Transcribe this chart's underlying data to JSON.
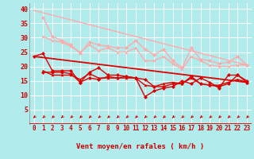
{
  "background_color": "#b2ebeb",
  "grid_color": "#ffffff",
  "xlabel": "Vent moyen/en rafales ( km/h )",
  "x_ticks": [
    0,
    1,
    2,
    3,
    4,
    5,
    6,
    7,
    8,
    9,
    10,
    11,
    12,
    13,
    14,
    15,
    16,
    17,
    18,
    19,
    20,
    21,
    22,
    23
  ],
  "ylim": [
    0,
    42
  ],
  "yticks": [
    5,
    10,
    15,
    20,
    25,
    30,
    35,
    40
  ],
  "lines": [
    {
      "color": "#ffaaaa",
      "linewidth": 1.0,
      "marker": null,
      "data_x": [
        0,
        23
      ],
      "data_y": [
        39.5,
        20.5
      ]
    },
    {
      "color": "#ffaaaa",
      "linewidth": 1.0,
      "marker": "D",
      "markersize": 2.5,
      "data_x": [
        1,
        2,
        3,
        4,
        5,
        6,
        7,
        8,
        9,
        10,
        11,
        12,
        13,
        14,
        15,
        16,
        17,
        18,
        19,
        20,
        21,
        22,
        23
      ],
      "data_y": [
        37.0,
        30.5,
        29.0,
        27.5,
        24.5,
        28.5,
        27.5,
        27.0,
        26.5,
        26.5,
        29.0,
        26.0,
        24.0,
        26.0,
        22.0,
        19.5,
        26.5,
        22.5,
        22.0,
        21.0,
        21.5,
        23.5,
        20.5
      ]
    },
    {
      "color": "#ffaaaa",
      "linewidth": 1.0,
      "marker": "^",
      "markersize": 2.5,
      "data_x": [
        1,
        2,
        3,
        4,
        5,
        6,
        7,
        8,
        9,
        10,
        11,
        12,
        13,
        14,
        15,
        16,
        17,
        18,
        19,
        20,
        21,
        22,
        23
      ],
      "data_y": [
        30.5,
        29.0,
        28.5,
        27.0,
        25.0,
        27.5,
        25.5,
        26.5,
        25.0,
        25.0,
        26.5,
        22.0,
        22.0,
        23.5,
        21.0,
        19.0,
        23.5,
        22.0,
        20.5,
        20.0,
        20.0,
        20.5,
        20.5
      ]
    },
    {
      "color": "#dd0000",
      "linewidth": 1.3,
      "marker": null,
      "data_x": [
        0,
        23
      ],
      "data_y": [
        23.5,
        14.5
      ]
    },
    {
      "color": "#dd0000",
      "linewidth": 1.0,
      "marker": "D",
      "markersize": 2.5,
      "data_x": [
        0,
        1,
        2,
        3,
        4,
        5,
        6,
        7,
        8,
        9,
        10,
        11,
        12,
        13,
        14,
        15,
        16,
        17,
        18,
        19,
        20,
        21,
        22,
        23
      ],
      "data_y": [
        23.5,
        24.5,
        18.5,
        18.5,
        18.5,
        14.5,
        18.0,
        19.5,
        17.0,
        17.0,
        16.5,
        16.0,
        9.5,
        11.5,
        12.5,
        13.0,
        15.0,
        14.0,
        16.0,
        14.5,
        12.5,
        17.0,
        17.0,
        14.5
      ]
    },
    {
      "color": "#dd0000",
      "linewidth": 1.0,
      "marker": "D",
      "markersize": 2.5,
      "data_x": [
        1,
        2,
        3,
        4,
        5,
        6,
        7,
        8,
        9,
        10,
        11,
        12,
        13,
        14,
        15,
        16,
        17,
        18,
        19,
        20,
        21,
        22,
        23
      ],
      "data_y": [
        18.0,
        18.0,
        18.0,
        17.5,
        14.5,
        16.0,
        15.5,
        16.5,
        16.0,
        16.5,
        16.0,
        15.5,
        13.0,
        13.0,
        14.0,
        14.0,
        16.5,
        14.0,
        13.5,
        13.0,
        14.0,
        17.0,
        15.0
      ]
    },
    {
      "color": "#dd0000",
      "linewidth": 1.0,
      "marker": "^",
      "markersize": 2.5,
      "data_x": [
        1,
        2,
        3,
        4,
        5,
        6,
        7,
        8,
        9,
        10,
        11,
        12,
        13,
        14,
        15,
        16,
        17,
        18,
        19,
        20,
        21,
        22,
        23
      ],
      "data_y": [
        18.5,
        17.0,
        17.0,
        17.0,
        15.5,
        17.5,
        16.0,
        16.0,
        16.0,
        16.0,
        16.0,
        13.5,
        13.0,
        14.0,
        14.5,
        14.0,
        16.0,
        14.0,
        13.5,
        13.5,
        14.5,
        15.5,
        14.5
      ]
    }
  ],
  "arrow_color": "#cc0000",
  "axis_label_color": "#cc0000",
  "tick_color": "#cc0000",
  "tick_fontsize": 5.5,
  "xlabel_fontsize": 6.5
}
